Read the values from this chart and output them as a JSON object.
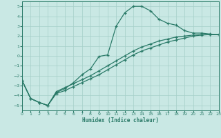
{
  "xlabel": "Humidex (Indice chaleur)",
  "xlim": [
    0,
    23
  ],
  "ylim": [
    -5.5,
    5.5
  ],
  "xticks": [
    0,
    1,
    2,
    3,
    4,
    5,
    6,
    7,
    8,
    9,
    10,
    11,
    12,
    13,
    14,
    15,
    16,
    17,
    18,
    19,
    20,
    21,
    22,
    23
  ],
  "yticks": [
    -5,
    -4,
    -3,
    -2,
    -1,
    0,
    1,
    2,
    3,
    4,
    5
  ],
  "bg_color": "#c9e8e4",
  "grid_color": "#a5cfc8",
  "line_color": "#2a7a68",
  "line1_x": [
    0,
    1,
    2,
    3,
    4,
    5,
    6,
    7,
    8,
    9,
    10,
    11,
    12,
    13,
    14,
    15,
    16,
    17,
    18,
    19,
    20,
    21,
    22,
    23
  ],
  "line1_y": [
    -2.5,
    -4.3,
    -4.7,
    -5.0,
    -3.7,
    -3.3,
    -2.7,
    -1.9,
    -1.3,
    -0.05,
    0.1,
    3.0,
    4.35,
    5.0,
    5.0,
    4.55,
    3.7,
    3.3,
    3.1,
    2.55,
    2.3,
    2.3,
    2.2,
    2.15
  ],
  "line2_x": [
    0,
    1,
    2,
    3,
    4,
    5,
    6,
    7,
    8,
    9,
    10,
    11,
    12,
    13,
    14,
    15,
    16,
    17,
    18,
    19,
    20,
    21,
    22,
    23
  ],
  "line2_y": [
    -2.5,
    -4.3,
    -4.7,
    -5.0,
    -3.8,
    -3.5,
    -3.1,
    -2.7,
    -2.3,
    -1.9,
    -1.4,
    -0.9,
    -0.4,
    0.1,
    0.5,
    0.8,
    1.1,
    1.4,
    1.6,
    1.8,
    2.0,
    2.1,
    2.15,
    2.15
  ],
  "line3_x": [
    0,
    1,
    2,
    3,
    4,
    5,
    6,
    7,
    8,
    9,
    10,
    11,
    12,
    13,
    14,
    15,
    16,
    17,
    18,
    19,
    20,
    21,
    22,
    23
  ],
  "line3_y": [
    -2.5,
    -4.3,
    -4.7,
    -5.0,
    -3.6,
    -3.2,
    -2.8,
    -2.4,
    -2.0,
    -1.5,
    -1.0,
    -0.5,
    0.0,
    0.5,
    0.9,
    1.2,
    1.5,
    1.7,
    1.9,
    2.0,
    2.1,
    2.15,
    2.15,
    2.15
  ]
}
